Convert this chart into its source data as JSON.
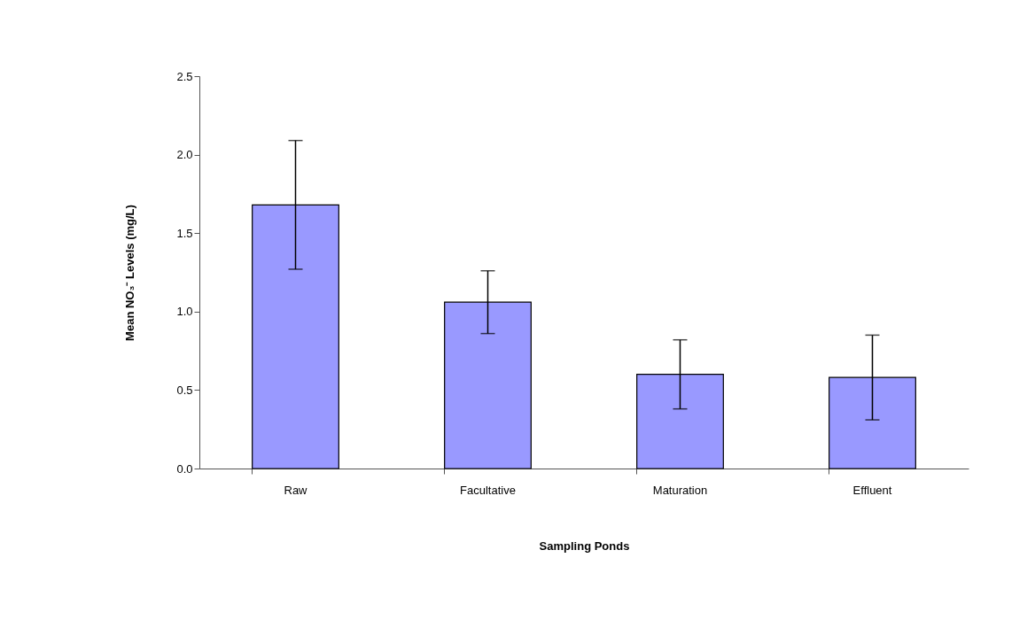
{
  "chart_data": {
    "type": "bar",
    "xlabel": "Sampling Ponds",
    "ylabel": "Mean NO₃⁻ Levels (mg/L)",
    "categories": [
      "Raw",
      "Facultative",
      "Maturation",
      "Effluent"
    ],
    "values": [
      1.68,
      1.06,
      0.6,
      0.58
    ],
    "errors": [
      0.41,
      0.2,
      0.22,
      0.27
    ],
    "color": "#9999ff",
    "ylim": [
      0,
      2.5
    ],
    "yticks": [
      {
        "value": 0,
        "label": "0.0"
      },
      0.5,
      {
        "value": 1,
        "label": "1.0"
      },
      1.5,
      {
        "value": 2,
        "label": "2.0"
      },
      2.5
    ],
    "grid": false
  }
}
